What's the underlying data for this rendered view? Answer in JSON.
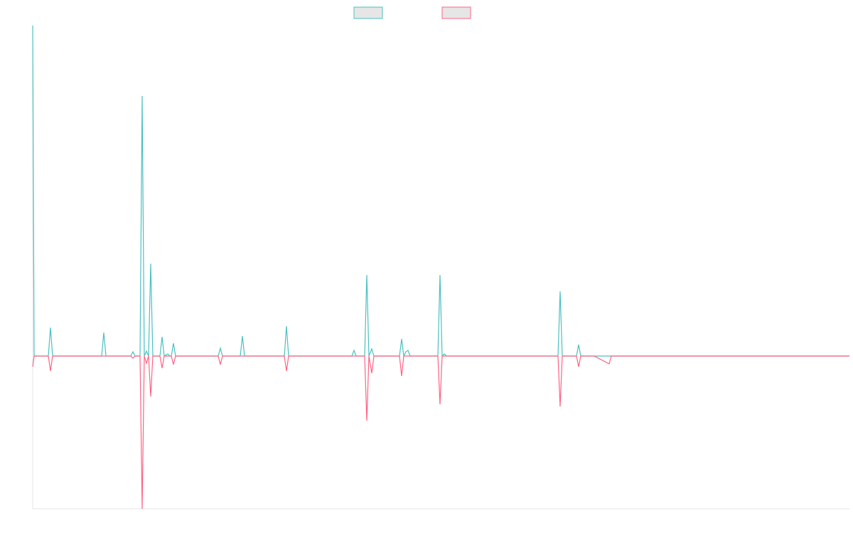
{
  "chart_data": {
    "type": "line",
    "x": [
      0,
      2,
      22,
      25,
      28,
      97,
      100,
      103,
      138,
      141,
      144,
      151,
      154,
      157,
      160,
      163,
      166,
      169,
      179,
      182,
      185,
      190,
      193,
      195,
      198,
      201,
      206,
      261,
      264,
      267,
      292,
      295,
      298,
      354,
      357,
      360,
      449,
      452,
      455,
      467,
      470,
      473,
      477,
      480,
      516,
      519,
      522,
      525,
      528,
      531,
      570,
      573,
      576,
      579,
      582,
      654,
      739,
      742,
      745,
      765,
      768,
      771,
      790,
      811,
      814,
      817,
      914,
      1149
    ],
    "xlim": [
      0,
      1149
    ],
    "ylim": [
      -215,
      465
    ],
    "series": [
      {
        "color": "#4bc0c0",
        "values": [
          465,
          0,
          0,
          40,
          0,
          0,
          33,
          0,
          0,
          6,
          0,
          0,
          366,
          0,
          7,
          0,
          130,
          0,
          0,
          27,
          0,
          3,
          0,
          0,
          18,
          0,
          0,
          0,
          11,
          0,
          0,
          28,
          0,
          0,
          42,
          0,
          0,
          8,
          0,
          0,
          114,
          0,
          10,
          0,
          0,
          24,
          0,
          6,
          8,
          0,
          0,
          114,
          0,
          3,
          0,
          0,
          0,
          91,
          0,
          0,
          16,
          0,
          0,
          0,
          0,
          0,
          0,
          0
        ]
      },
      {
        "color": "#ff6384",
        "values": [
          -15,
          0,
          0,
          -21,
          0,
          0,
          0,
          0,
          0,
          -3,
          0,
          0,
          -215,
          0,
          -10,
          0,
          -57,
          0,
          0,
          -17,
          0,
          0,
          0,
          0,
          -12,
          0,
          0,
          0,
          -12,
          0,
          0,
          0,
          0,
          0,
          -21,
          0,
          0,
          0,
          0,
          0,
          -91,
          0,
          -24,
          0,
          0,
          -28,
          0,
          0,
          0,
          0,
          0,
          -68,
          0,
          0,
          0,
          0,
          0,
          -71,
          0,
          0,
          -15,
          0,
          0,
          -11,
          0,
          0,
          0,
          0
        ]
      }
    ]
  }
}
